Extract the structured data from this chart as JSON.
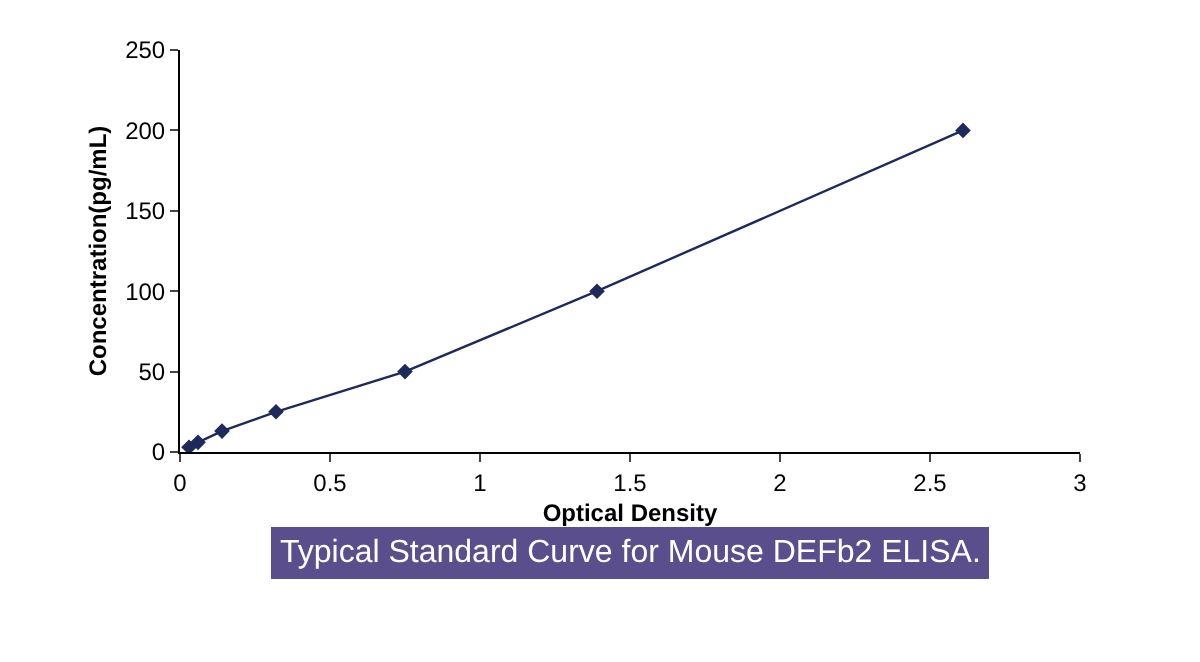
{
  "chart_data": {
    "type": "line",
    "xlabel": "Optical Density",
    "ylabel": "Concentration(pg/mL)",
    "annotations": [
      "Typical Standard Curve for Mouse DEFb2 ELISA."
    ],
    "series": [
      {
        "color": "#1f2a5c",
        "x": [
          0.03,
          0.06,
          0.14,
          0.32,
          0.75,
          1.39,
          2.61
        ],
        "values": [
          3,
          6,
          13,
          25,
          50,
          100,
          200
        ]
      }
    ],
    "xlim": [
      0,
      3
    ],
    "xticks": [
      0,
      0.5,
      1,
      1.5,
      2,
      2.5,
      3
    ],
    "ylim": [
      0,
      250
    ],
    "yticks": [
      0,
      50,
      100,
      150,
      200,
      250
    ],
    "marker": "diamond",
    "line_style": "solid",
    "legend": false
  }
}
